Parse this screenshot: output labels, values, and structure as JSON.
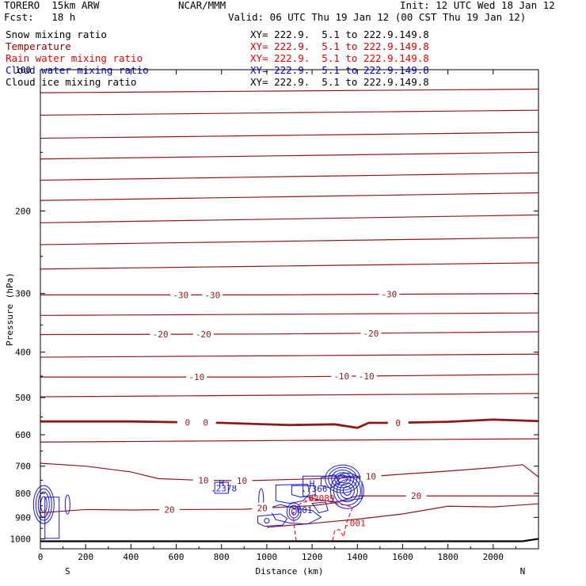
{
  "header": {
    "model": "TORERO  15km ARW",
    "center": "NCAR/MMM",
    "init": "Init: 12 UTC Wed 18 Jan 12",
    "fcst": "Fcst:   18 h",
    "valid": "Valid: 06 UTC Thu 19 Jan 12 (00 CST Thu 19 Jan 12)",
    "xy_text": "XY= 222.9.  5.1 to 222.9.149.8"
  },
  "legend": [
    {
      "label": "Snow mixing ratio",
      "color": "#000000"
    },
    {
      "label": "Temperature",
      "color": "#8b0000"
    },
    {
      "label": "Rain water mixing ratio",
      "color": "#ee0000"
    },
    {
      "label": "Cloud water mixing ratio",
      "color": "#0000cc"
    },
    {
      "label": "Cloud ice mixing ratio",
      "color": "#000000"
    }
  ],
  "chart_data": {
    "type": "line",
    "ylabel": "Pressure (hPa)",
    "xlabel": "Distance (km)",
    "left_end_label": "S",
    "right_end_label": "N",
    "xlim": [
      0,
      2200
    ],
    "ylim": [
      1050,
      100
    ],
    "y_scale": "log",
    "x_ticks": [
      0,
      200,
      400,
      600,
      800,
      1000,
      1200,
      1400,
      1600,
      1800,
      2000
    ],
    "y_ticks": [
      100,
      200,
      300,
      400,
      500,
      600,
      700,
      800,
      900,
      1000
    ],
    "x_tick_labels": [
      "0",
      "200",
      "400",
      "600",
      "800",
      "1000",
      "1200",
      "1400",
      "1600",
      "1800",
      "2000"
    ],
    "y_tick_labels": [
      "100",
      "200",
      "300",
      "400",
      "500",
      "600",
      "700",
      "800",
      "900",
      "1000"
    ],
    "temperature_isotherms": [
      {
        "value": -30,
        "label": "-30",
        "label_x": [
          620,
          760,
          1540
        ],
        "p": [
          [
            0,
            302
          ],
          [
            1000,
            302
          ],
          [
            2200,
            300
          ]
        ]
      },
      {
        "value": -20,
        "label": "-20",
        "label_x": [
          530,
          720,
          1460
        ],
        "p": [
          [
            0,
            367
          ],
          [
            1000,
            366
          ],
          [
            2200,
            362
          ]
        ]
      },
      {
        "value": -10,
        "label": "-10",
        "label_x": [
          690,
          1330,
          1440
        ],
        "p": [
          [
            0,
            452
          ],
          [
            1000,
            452
          ],
          [
            2200,
            446
          ]
        ]
      },
      {
        "value": 0,
        "label": "0",
        "label_x": [
          650,
          730,
          1580
        ],
        "p": [
          [
            0,
            562
          ],
          [
            400,
            562
          ],
          [
            800,
            566
          ],
          [
            1100,
            572
          ],
          [
            1300,
            570
          ],
          [
            1400,
            580
          ],
          [
            1450,
            566
          ],
          [
            1550,
            566
          ],
          [
            1800,
            563
          ],
          [
            2000,
            557
          ],
          [
            2200,
            561
          ]
        ],
        "bold": true
      },
      {
        "value": 10,
        "label": "10",
        "label_x": [
          720,
          890,
          1460
        ],
        "p": [
          [
            0,
            690
          ],
          [
            200,
            700
          ],
          [
            400,
            720
          ],
          [
            520,
            744
          ],
          [
            700,
            750
          ],
          [
            900,
            752
          ],
          [
            1200,
            745
          ],
          [
            1400,
            740
          ],
          [
            1600,
            728
          ],
          [
            1800,
            717
          ],
          [
            2000,
            705
          ],
          [
            2130,
            695
          ],
          [
            2200,
            738
          ]
        ]
      },
      {
        "value": 20,
        "label": "20",
        "label_x": [
          570,
          980,
          1660
        ],
        "p": [
          [
            0,
            880
          ],
          [
            200,
            866
          ],
          [
            400,
            868
          ],
          [
            600,
            866
          ],
          [
            900,
            865
          ],
          [
            1000,
            859
          ],
          [
            1200,
            850
          ],
          [
            1300,
            838
          ],
          [
            1400,
            810
          ],
          [
            2200,
            810
          ]
        ]
      },
      {
        "value": 20,
        "label": "20",
        "label_x": [],
        "p": [
          [
            1000,
            945
          ],
          [
            1200,
            927
          ],
          [
            1400,
            908
          ],
          [
            1600,
            885
          ],
          [
            1800,
            852
          ],
          [
            2000,
            855
          ],
          [
            2200,
            842
          ]
        ]
      }
    ],
    "cloud_water_labels": [
      {
        "text": "H",
        "x": 800,
        "p": 772
      },
      {
        "text": ".2378",
        "x": 810,
        "p": 792
      },
      {
        "text": "H",
        "x": 1200,
        "p": 774
      },
      {
        "text": ".7366",
        "x": 1210,
        "p": 794
      },
      {
        "text": ".001",
        "x": 1155,
        "p": 882
      }
    ],
    "rain_water_labels": [
      {
        "text": ".02089",
        "x": 1230,
        "p": 832
      },
      {
        "text": ".001",
        "x": 1390,
        "p": 940
      }
    ],
    "surface_pressure": [
      [
        0,
        1012
      ],
      [
        1000,
        1012
      ],
      [
        2000,
        1012
      ],
      [
        2130,
        1012
      ],
      [
        2200,
        1000
      ]
    ],
    "grid": false
  }
}
